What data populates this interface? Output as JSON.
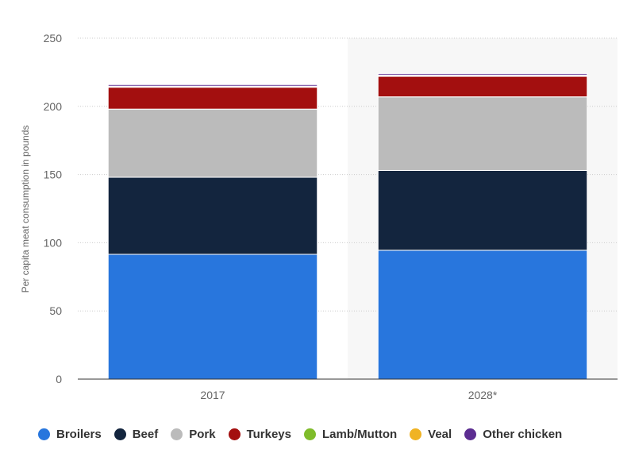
{
  "chart_data": {
    "type": "bar",
    "stacked": true,
    "title": "",
    "xlabel": "",
    "ylabel": "Per capita meat consumption in pounds",
    "categories": [
      "2017",
      "2028*"
    ],
    "ylim": [
      0,
      250
    ],
    "yticks": [
      0,
      50,
      100,
      150,
      200,
      250
    ],
    "grid": true,
    "legend_position": "bottom",
    "highlight_category": "2028*",
    "series": [
      {
        "name": "Broilers",
        "color": "#2876dd",
        "values": [
          91.5,
          94.5
        ]
      },
      {
        "name": "Beef",
        "color": "#13253e",
        "values": [
          56.5,
          58.5
        ]
      },
      {
        "name": "Pork",
        "color": "#bbbbbb",
        "values": [
          50.0,
          54.0
        ]
      },
      {
        "name": "Turkeys",
        "color": "#a30f0f",
        "values": [
          16.0,
          15.0
        ]
      },
      {
        "name": "Lamb/Mutton",
        "color": "#7fbc2b",
        "values": [
          0.5,
          0.6
        ]
      },
      {
        "name": "Veal",
        "color": "#f0b323",
        "values": [
          0.4,
          0.4
        ]
      },
      {
        "name": "Other chicken",
        "color": "#5c2d91",
        "values": [
          1.1,
          1.1
        ]
      }
    ]
  }
}
